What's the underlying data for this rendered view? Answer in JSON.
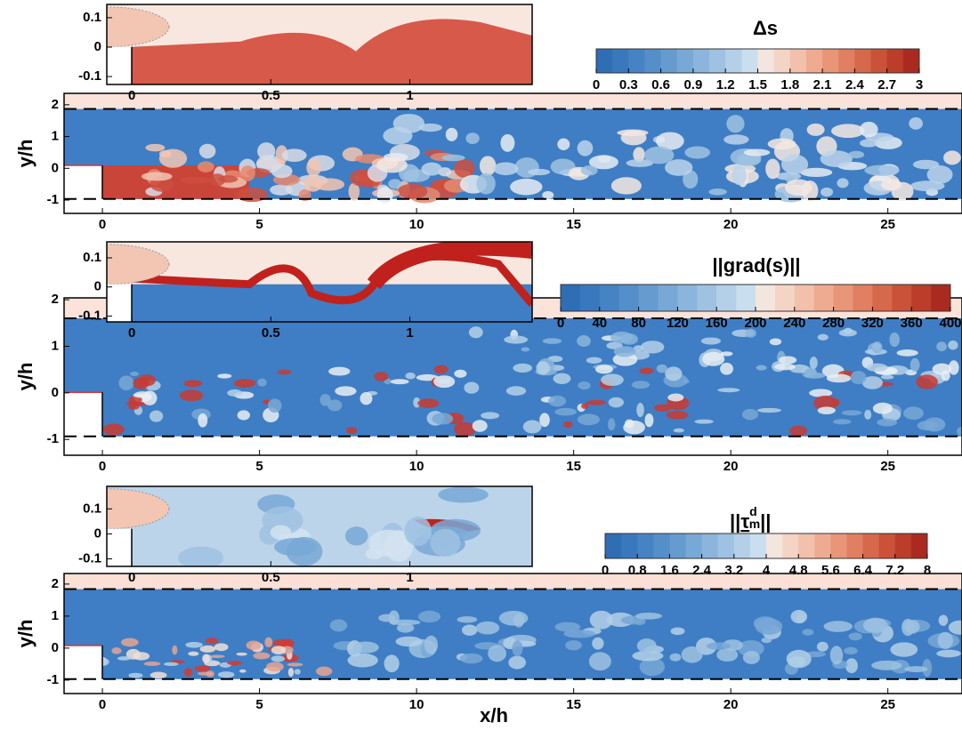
{
  "chart_data": [
    {
      "type": "contour",
      "colorbar": {
        "title": "Δs",
        "clim": [
          0,
          3
        ],
        "ticks": [
          0,
          0.3,
          0.6,
          0.9,
          1.2,
          1.5,
          1.8,
          2.1,
          2.4,
          2.7,
          3
        ],
        "colors": [
          "#2f6db5",
          "#3a78bd",
          "#4683c4",
          "#558fca",
          "#669bd0",
          "#78a8d6",
          "#8bb5dc",
          "#9fc2e2",
          "#b4d0e8",
          "#c9deee",
          "#f3e6df",
          "#f4d4c5",
          "#f2c0ab",
          "#eeab91",
          "#e89578",
          "#e07f61",
          "#d6684c",
          "#c95239",
          "#bb3d2a",
          "#aa2a20"
        ]
      },
      "inset": {
        "xlim": [
          -0.09,
          1.44
        ],
        "ylim": [
          -0.127,
          0.145
        ],
        "xticks": [
          0,
          0.5,
          1
        ],
        "yticks": [
          -0.1,
          0,
          0.1
        ]
      },
      "main": {
        "xlim": [
          -1.22,
          27.36
        ],
        "ylim": [
          -1.42,
          2.36
        ],
        "xticks": [
          0,
          5,
          10,
          15,
          20,
          25
        ],
        "yticks": [
          -1,
          0,
          1,
          2
        ],
        "ylabel": "y/h"
      }
    },
    {
      "type": "contour",
      "colorbar": {
        "title": "||grad(s)||",
        "clim": [
          0,
          400
        ],
        "ticks": [
          0,
          40,
          80,
          120,
          160,
          200,
          240,
          280,
          320,
          360,
          400
        ],
        "colors": [
          "#2f6db5",
          "#3a78bd",
          "#4683c4",
          "#558fca",
          "#669bd0",
          "#78a8d6",
          "#8bb5dc",
          "#9fc2e2",
          "#b4d0e8",
          "#c9deee",
          "#f3e6df",
          "#f4d4c5",
          "#f2c0ab",
          "#eeab91",
          "#e89578",
          "#e07f61",
          "#d6684c",
          "#c95239",
          "#bb3d2a",
          "#aa2a20"
        ]
      },
      "inset": {
        "xlim": [
          -0.09,
          1.44
        ],
        "ylim": [
          -0.12,
          0.155
        ],
        "xticks": [
          0,
          0.5,
          1
        ],
        "yticks": [
          -0.1,
          0,
          0.1
        ]
      },
      "main": {
        "xlim": [
          -1.22,
          27.36
        ],
        "ylim": [
          -1.34,
          2.04
        ],
        "xticks": [
          0,
          5,
          10,
          15,
          20,
          25
        ],
        "yticks": [
          -1,
          0,
          1,
          2
        ],
        "ylabel": "y/h"
      }
    },
    {
      "type": "contour",
      "colorbar": {
        "title_parts": [
          "||",
          "τ",
          "d",
          "m",
          "||"
        ],
        "clim": [
          0,
          8
        ],
        "ticks": [
          0,
          0.8,
          1.6,
          2.4,
          3.2,
          4,
          4.8,
          5.6,
          6.4,
          7.2,
          8
        ],
        "colors": [
          "#2f6db5",
          "#3a78bd",
          "#4683c4",
          "#558fca",
          "#669bd0",
          "#78a8d6",
          "#8bb5dc",
          "#9fc2e2",
          "#b4d0e8",
          "#c9deee",
          "#f3e6df",
          "#f4d4c5",
          "#f2c0ab",
          "#eeab91",
          "#e89578",
          "#e07f61",
          "#d6684c",
          "#c95239",
          "#bb3d2a",
          "#aa2a20"
        ]
      },
      "inset": {
        "xlim": [
          -0.09,
          1.44
        ],
        "ylim": [
          -0.13,
          0.19
        ],
        "xticks": [
          0,
          0.5,
          1
        ],
        "yticks": [
          -0.1,
          0,
          0.1
        ]
      },
      "main": {
        "xlim": [
          -1.22,
          27.36
        ],
        "ylim": [
          -1.42,
          2.33
        ],
        "xticks": [
          0,
          5,
          10,
          15,
          20,
          25
        ],
        "yticks": [
          -1,
          0,
          1,
          2
        ],
        "ylabel": "y/h",
        "xlabel": "x/h"
      }
    }
  ]
}
